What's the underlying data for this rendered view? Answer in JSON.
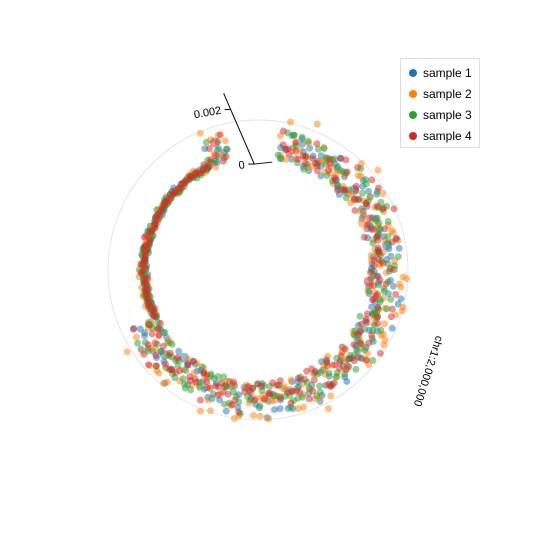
{
  "chart_data": {
    "type": "scatter",
    "layout": "polar",
    "radial_axis": {
      "range": [
        0,
        0.003
      ],
      "tick_labels": [
        "0",
        "0.002"
      ],
      "tick_values": [
        0,
        0.002
      ]
    },
    "angular_axis": {
      "tick_labels": [
        "chr1:2,000,000"
      ]
    },
    "legend": {
      "placement": "top-right",
      "entries": [
        "sample 1",
        "sample 2",
        "sample 3",
        "sample 4"
      ]
    },
    "colors": [
      "#1f77b4",
      "#ff7f0e",
      "#2ca02c",
      "#d62728"
    ],
    "series_names": [
      "sample 1",
      "sample 2",
      "sample 3",
      "sample 4"
    ],
    "point_count_per_series": 240,
    "angle_start_deg": 10,
    "angle_end_deg": 345
  }
}
